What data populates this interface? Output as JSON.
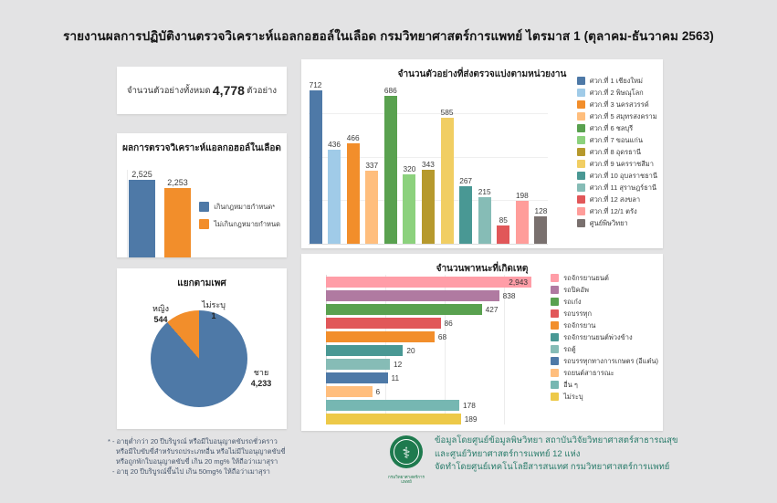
{
  "page": {
    "title": "รายงานผลการปฏิบัติงานตรวจวิเคราะห์แอลกอฮอล์ในเลือด กรมวิทยาศาสตร์การแพทย์ ไตรมาส 1 (ตุลาคม-ธันวาคม 2563)",
    "background_color": "#e3e3e4",
    "panel_color": "#ffffff"
  },
  "summary": {
    "label": "จำนวนตัวอย่างทั้งหมด",
    "value": "4,778",
    "unit": "ตัวอย่าง"
  },
  "chart_data": [
    {
      "id": "alcohol_result",
      "type": "bar",
      "title": "ผลการตรวจวิเคราะห์แอลกอฮอล์ในเลือด",
      "categories": [
        "เกินกฎหมายกำหนด*",
        "ไม่เกินกฎหมายกำหนด"
      ],
      "values": [
        2525,
        2253
      ],
      "value_labels": [
        "2,525",
        "2,253"
      ],
      "colors": [
        "#4E79A7",
        "#F28E2B"
      ],
      "legend_position": "right",
      "ylim": [
        0,
        2525
      ],
      "grid": false
    },
    {
      "id": "gender_pie",
      "type": "pie",
      "title": "แยกตามเพศ",
      "categories": [
        "ชาย",
        "หญิง",
        "ไม่ระบุ"
      ],
      "values": [
        4233,
        544,
        1
      ],
      "value_labels": [
        "4,233",
        "544",
        "1"
      ],
      "colors": [
        "#4E79A7",
        "#F28E2B",
        "#A6A6A6"
      ]
    },
    {
      "id": "samples_by_unit",
      "type": "bar",
      "title": "จำนวนตัวอย่างที่ส่งตรวจแบ่งตามหน่วยงาน",
      "categories": [
        "ศวก.ที่ 1 เชียงใหม่",
        "ศวก.ที่ 2 พิษณุโลก",
        "ศวก.ที่ 3 นครสวรรค์",
        "ศวก.ที่ 5 สมุทรสงคราม",
        "ศวก.ที่ 6 ชลบุรี",
        "ศวก.ที่ 7 ขอนแก่น",
        "ศวก.ที่ 8 อุดรธานี",
        "ศวก.ที่ 9 นครราชสีมา",
        "ศวก.ที่ 10 อุบลราชธานี",
        "ศวก.ที่ 11 สุราษฎร์ธานี",
        "ศวก.ที่ 12 สงขลา",
        "ศวก.ที่ 12/1 ตรัง",
        "ศูนย์พิษวิทยา"
      ],
      "values": [
        712,
        436,
        466,
        337,
        686,
        320,
        343,
        585,
        267,
        215,
        85,
        198,
        128
      ],
      "value_labels": [
        "712",
        "436",
        "466",
        "337",
        "686",
        "320",
        "343",
        "585",
        "267",
        "215",
        "85",
        "198",
        "128"
      ],
      "colors": [
        "#4E79A7",
        "#A0CBE8",
        "#F28E2B",
        "#FFBE7D",
        "#59A14F",
        "#8CD17D",
        "#B6992D",
        "#F1CE63",
        "#499894",
        "#86BCB6",
        "#E15759",
        "#FF9D9A",
        "#79706E"
      ],
      "legend_position": "right",
      "ylim": [
        0,
        712
      ],
      "gridlines": [
        200,
        400,
        600
      ]
    },
    {
      "id": "vehicles",
      "type": "bar",
      "orientation": "horizontal",
      "x_scale": "log",
      "title": "จำนวนพาหนะที่เกิดเหตุ",
      "categories": [
        "รถจักรยานยนต์",
        "รถปิคอัพ",
        "รถเก๋ง",
        "รถบรรทุก",
        "รถจักรยาน",
        "รถจักรยานยนต์พ่วงข้าง",
        "รถตู้",
        "รถบรรทุกทางการเกษตร (อีแต๋น)",
        "รถยนต์สาธารณะ",
        "อื่น ๆ",
        "ไม่ระบุ"
      ],
      "values": [
        2943,
        838,
        427,
        86,
        68,
        20,
        12,
        11,
        6,
        178,
        189
      ],
      "value_labels": [
        "2,943",
        "838",
        "427",
        "86",
        "68",
        "20",
        "12",
        "11",
        "6",
        "178",
        "189"
      ],
      "colors": [
        "#FF9DA7",
        "#B07AA1",
        "#59A14F",
        "#E15759",
        "#F28E2B",
        "#499894",
        "#86BCB6",
        "#4E79A7",
        "#FFBE7D",
        "#76B7B2",
        "#EDC948"
      ],
      "legend_position": "right",
      "xlim": [
        1,
        3000
      ],
      "gridlines": [
        10,
        100,
        1000
      ]
    }
  ],
  "footnote": {
    "lines": [
      "* - อายุต่ำกว่า 20 ปีบริบูรณ์  หรือมีใบอนุญาตขับรถชั่วคราว",
      "หรือมีใบขับขี่สำหรับรถประเภทอื่น หรือไม่มีใบอนุญาตขับขี่",
      "หรือถูกพักใบอนุญาตขับขี่ เกิน 20 mg% ให้ถือว่าเมาสุรา",
      "- อายุ 20 ปีบริบูรณ์ขึ้นไป เกิน 50mg% ให้ถือว่าเมาสุรา"
    ]
  },
  "source": {
    "lines": [
      "ข้อมูลโดยศูนย์ข้อมูลพิษวิทยา สถาบันวิจัยวิทยาศาสตร์สาธารณสุข",
      "และศูนย์วิทยาศาสตร์การแพทย์ 12 แห่ง",
      "จัดทำโดยศูนย์เทคโนโลยีสารสนเทศ กรมวิทยาศาสตร์การแพทย์"
    ],
    "logo_caption": "กรมวิทยาศาสตร์การแพทย์",
    "logo_color": "#1e7a4e"
  }
}
